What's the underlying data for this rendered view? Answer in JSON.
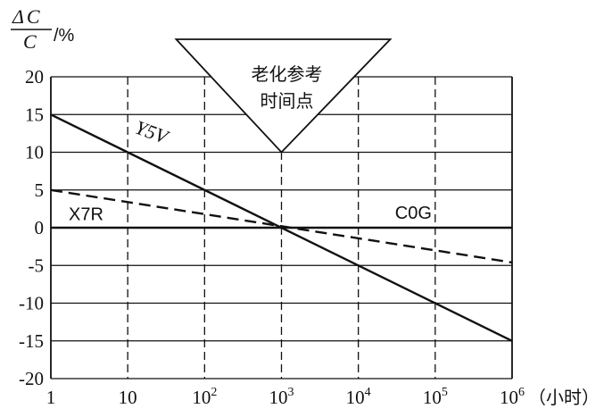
{
  "chart_data": {
    "type": "line",
    "ylabel": {
      "delta": "Δ",
      "C": "C",
      "unit": "/%"
    },
    "xlabel_unit": "（小时）",
    "xscale": "log",
    "xlim": [
      1,
      1000000
    ],
    "ylim": [
      -20,
      20
    ],
    "grid": true,
    "x_ticks": [
      {
        "value": 1,
        "base": "1",
        "exp": ""
      },
      {
        "value": 10,
        "base": "10",
        "exp": ""
      },
      {
        "value": 100,
        "base": "10",
        "exp": "2"
      },
      {
        "value": 1000,
        "base": "10",
        "exp": "3"
      },
      {
        "value": 10000,
        "base": "10",
        "exp": "4"
      },
      {
        "value": 100000,
        "base": "10",
        "exp": "5"
      },
      {
        "value": 1000000,
        "base": "10",
        "exp": "6"
      }
    ],
    "y_ticks": [
      20,
      15,
      10,
      5,
      0,
      -5,
      -10,
      -15,
      -20
    ],
    "series": [
      {
        "name": "Y5V",
        "style": "solid",
        "x": [
          1,
          1000000
        ],
        "y": [
          15,
          -15
        ]
      },
      {
        "name": "X7R",
        "style": "dashed",
        "x": [
          1,
          1000000
        ],
        "y": [
          5,
          -4.6
        ]
      },
      {
        "name": "C0G",
        "style": "solid",
        "x": [
          1,
          1000000
        ],
        "y": [
          0,
          0
        ]
      }
    ],
    "annotation": {
      "line1": "老化参考",
      "line2": "时间点",
      "x": 1000
    },
    "colors": {
      "ink": "#111111",
      "background": "#ffffff"
    }
  }
}
